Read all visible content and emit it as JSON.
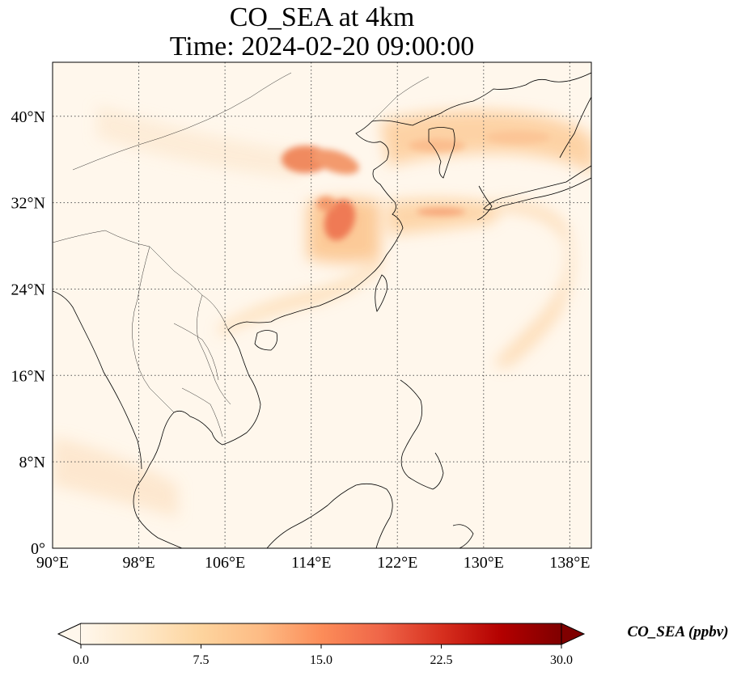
{
  "title": {
    "line1": "CO_SEA at 4km",
    "line2": "Time: 2024-02-20 09:00:00"
  },
  "map": {
    "projection": "PlateCarree",
    "lon_range": [
      90,
      140
    ],
    "lat_range": [
      0,
      45
    ],
    "gridlines": "dotted",
    "lon_ticks": [
      {
        "value": 90,
        "label": "90°E"
      },
      {
        "value": 98,
        "label": "98°E"
      },
      {
        "value": 106,
        "label": "106°E"
      },
      {
        "value": 114,
        "label": "114°E"
      },
      {
        "value": 122,
        "label": "122°E"
      },
      {
        "value": 130,
        "label": "130°E"
      },
      {
        "value": 138,
        "label": "138°E"
      }
    ],
    "lat_ticks": [
      {
        "value": 0,
        "label": "0°"
      },
      {
        "value": 8,
        "label": "8°N"
      },
      {
        "value": 16,
        "label": "16°N"
      },
      {
        "value": 24,
        "label": "24°N"
      },
      {
        "value": 32,
        "label": "32°N"
      },
      {
        "value": 40,
        "label": "40°N"
      }
    ]
  },
  "colorbar": {
    "label": "CO_SEA (ppbv)",
    "colormap": "OrRd",
    "range": [
      0,
      30
    ],
    "extend": "both",
    "colors": [
      "#fff7ec",
      "#fee8c8",
      "#fdd49e",
      "#fdbb84",
      "#fc8d59",
      "#ef6548",
      "#d7301f",
      "#b30000",
      "#7f0000"
    ],
    "ticks": [
      {
        "value": 0,
        "label": "0.0"
      },
      {
        "value": 7.5,
        "label": "7.5"
      },
      {
        "value": 15,
        "label": "15.0"
      },
      {
        "value": 22.5,
        "label": "22.5"
      },
      {
        "value": 30,
        "label": "30.0"
      }
    ]
  }
}
